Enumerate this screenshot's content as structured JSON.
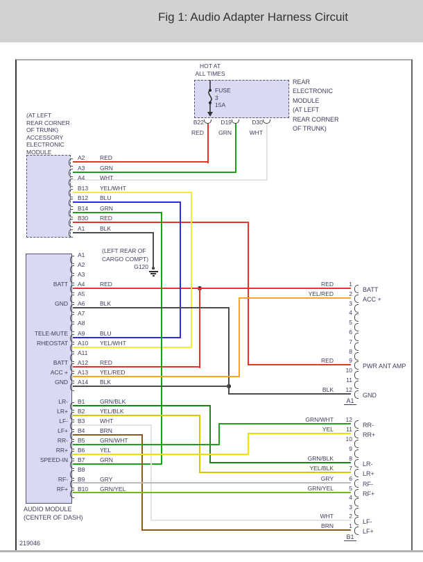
{
  "title": "Fig 1: Audio Adapter Harness Circuit",
  "doc_number": "219046",
  "colors": {
    "RED": "#e5332a",
    "GRN": "#18a018",
    "WHT": "#e3e3e3",
    "BLK": "#4d4d4d",
    "BLU": "#2b2be0",
    "GRY": "#b9b9b9",
    "BRN": "#8a5a1d",
    "YEL": "#f0e000",
    "YEL/WHT": "#f6e838",
    "YEL/BLK": "#d6c500",
    "YEL/RED": "#f5a623",
    "GRN/BLK": "#0f8a0f",
    "GRN/WHT": "#1ea21e",
    "GRN/YEL": "#6fbe0f"
  },
  "power": {
    "hot_line1": "HOT AT",
    "hot_line2": "ALL TIMES",
    "fuse_name": "FUSE",
    "fuse_number": "3",
    "fuse_rating": "15A",
    "module_label_lines": [
      "REAR",
      "ELECTRONIC",
      "MODULE",
      "(AT LEFT",
      "REAR CORNER",
      "OF TRUNK)"
    ],
    "pins": [
      {
        "id": "B22",
        "color": "RED"
      },
      {
        "id": "D19",
        "color": "GRN"
      },
      {
        "id": "D30",
        "color": "WHT"
      }
    ]
  },
  "accessory_module": {
    "label_lines": [
      "(AT LEFT",
      "REAR CORNER",
      "OF TRUNK)",
      "ACCESSORY",
      "ELECTRONIC",
      "MODULE"
    ],
    "pins": [
      {
        "id": "A2",
        "color": "RED"
      },
      {
        "id": "A3",
        "color": "GRN"
      },
      {
        "id": "A4",
        "color": "WHT"
      },
      {
        "id": "B13",
        "color": "YEL/WHT"
      },
      {
        "id": "B12",
        "color": "BLU"
      },
      {
        "id": "B14",
        "color": "GRN"
      },
      {
        "id": "B30",
        "color": "RED"
      },
      {
        "id": "A1",
        "color": "BLK"
      }
    ]
  },
  "audio_module": {
    "label_line1": "AUDIO MODULE",
    "label_line2": "(CENTER OF DASH)",
    "pins_a": [
      {
        "id": "A1"
      },
      {
        "id": "A2"
      },
      {
        "id": "A3"
      },
      {
        "id": "A4",
        "color": "RED",
        "label": "BATT"
      },
      {
        "id": "A5"
      },
      {
        "id": "A6",
        "color": "BLK",
        "label": "GND"
      },
      {
        "id": "A7"
      },
      {
        "id": "A8"
      },
      {
        "id": "A9",
        "color": "BLU",
        "label": "TELE-MUTE"
      },
      {
        "id": "A10",
        "color": "YEL/WHT",
        "label": "RHEOSTAT"
      },
      {
        "id": "A11"
      },
      {
        "id": "A12",
        "color": "RED",
        "label": "BATT"
      },
      {
        "id": "A13",
        "color": "YEL/RED",
        "label": "ACC +"
      },
      {
        "id": "A14",
        "color": "BLK",
        "label": "GND"
      }
    ],
    "pins_b": [
      {
        "id": "B1",
        "color": "GRN/BLK",
        "label": "LR-"
      },
      {
        "id": "B2",
        "color": "YEL/BLK",
        "label": "LR+"
      },
      {
        "id": "B3",
        "color": "WHT",
        "label": "LF-"
      },
      {
        "id": "B4",
        "color": "BRN",
        "label": "LF+"
      },
      {
        "id": "B5",
        "color": "GRN/WHT",
        "label": "RR-"
      },
      {
        "id": "B6",
        "color": "YEL",
        "label": "RR+"
      },
      {
        "id": "B7",
        "color": "GRN",
        "label": "SPEED-IN"
      },
      {
        "id": "B8"
      },
      {
        "id": "B9",
        "color": "GRY",
        "label": "RF-"
      },
      {
        "id": "B10",
        "color": "GRN/YEL",
        "label": "RF+"
      }
    ]
  },
  "ground": {
    "label_line1": "(LEFT REAR OF",
    "label_line2": "CARGO COMPT)",
    "id": "G120"
  },
  "connector_a": {
    "id_label": "A1",
    "pins": [
      {
        "n": "1",
        "color": "RED",
        "label": "BATT"
      },
      {
        "n": "2",
        "color": "YEL/RED",
        "label": "ACC +"
      },
      {
        "n": "3"
      },
      {
        "n": "4"
      },
      {
        "n": "5"
      },
      {
        "n": "6"
      },
      {
        "n": "7"
      },
      {
        "n": "8"
      },
      {
        "n": "9",
        "color": "RED",
        "label": "PWR ANT AMP"
      },
      {
        "n": "10"
      },
      {
        "n": "11"
      },
      {
        "n": "12",
        "color": "BLK",
        "label": "GND"
      }
    ]
  },
  "connector_b": {
    "id_label": "B1",
    "pins": [
      {
        "n": "12",
        "color": "GRN/WHT",
        "label": "RR-"
      },
      {
        "n": "11",
        "color": "YEL",
        "label": "RR+"
      },
      {
        "n": "10"
      },
      {
        "n": "9"
      },
      {
        "n": "8",
        "color": "GRN/BLK",
        "label": "LR-"
      },
      {
        "n": "7",
        "color": "YEL/BLK",
        "label": "LR+"
      },
      {
        "n": "6",
        "color": "GRY",
        "label": "RF-"
      },
      {
        "n": "5",
        "color": "GRN/YEL",
        "label": "RF+"
      },
      {
        "n": "4"
      },
      {
        "n": "3"
      },
      {
        "n": "2",
        "color": "WHT",
        "label": "LF-"
      },
      {
        "n": "1",
        "color": "BRN",
        "label": "LF+"
      }
    ]
  }
}
